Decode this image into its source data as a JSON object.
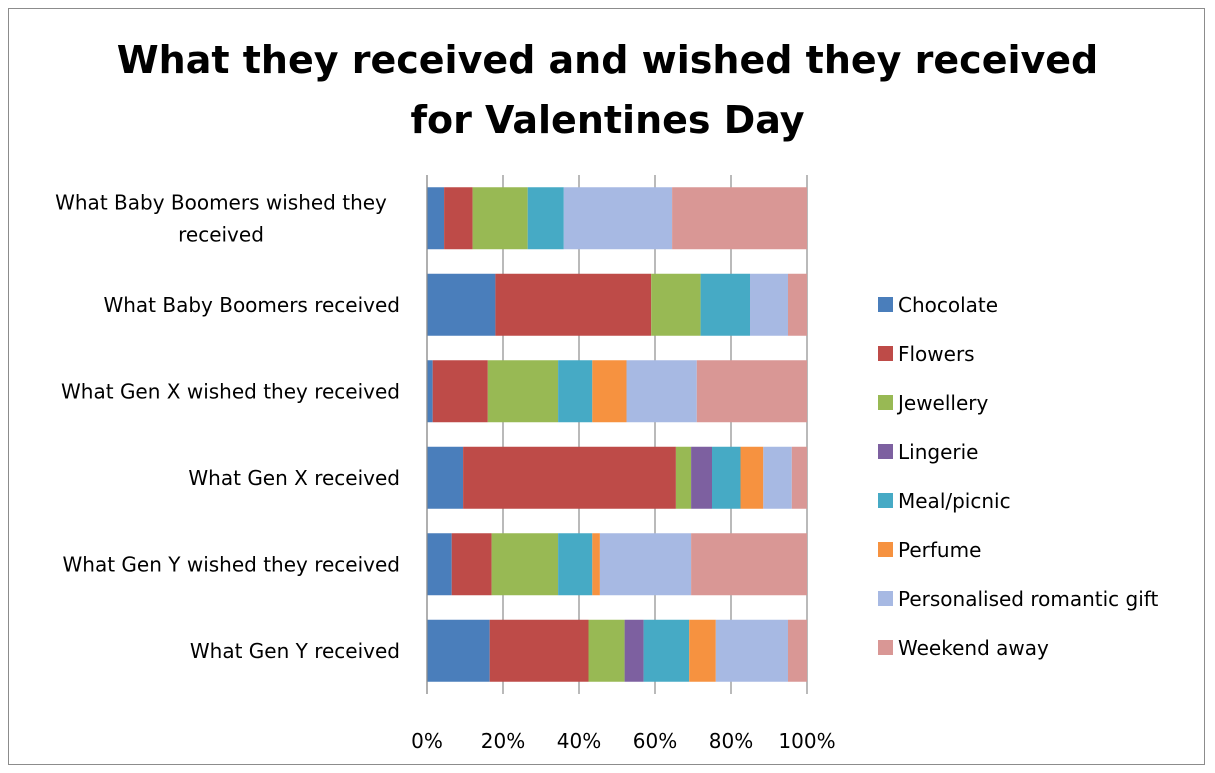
{
  "chart_data": {
    "type": "bar",
    "orientation": "horizontal",
    "stacked": "percent",
    "title": [
      "What they received and wished they received",
      "for Valentines Day"
    ],
    "categories": [
      "What Baby Boomers wished they received",
      "What Baby Boomers received",
      "What Gen X wished they received",
      "What Gen X received",
      "What Gen Y wished they received",
      "What Gen Y received"
    ],
    "category_label_lines": [
      [
        "What Baby Boomers wished they",
        "received"
      ],
      [
        "What Baby Boomers received"
      ],
      [
        "What Gen X wished they received"
      ],
      [
        "What Gen X received"
      ],
      [
        "What Gen Y wished they received"
      ],
      [
        "What Gen Y received"
      ]
    ],
    "series": [
      {
        "name": "Chocolate",
        "color": "#4a7ebb",
        "values": [
          4.5,
          18,
          1.5,
          9.5,
          6.5,
          16.5
        ]
      },
      {
        "name": "Flowers",
        "color": "#be4b48",
        "values": [
          7.5,
          41,
          14.5,
          56,
          10.5,
          26
        ]
      },
      {
        "name": "Jewellery",
        "color": "#98b954",
        "values": [
          14.5,
          13,
          18.5,
          4,
          17.5,
          9.5
        ]
      },
      {
        "name": "Lingerie",
        "color": "#7d60a0",
        "values": [
          0,
          0,
          0,
          5.5,
          0,
          5
        ]
      },
      {
        "name": "Meal/picnic",
        "color": "#46aac5",
        "values": [
          9.5,
          13,
          9,
          7.5,
          9,
          12
        ]
      },
      {
        "name": "Perfume",
        "color": "#f69240",
        "values": [
          0,
          0,
          9,
          6,
          2,
          7
        ]
      },
      {
        "name": "Personalised romantic gift",
        "color": "#a7b9e3",
        "values": [
          28.5,
          10,
          18.5,
          7.5,
          24,
          19
        ]
      },
      {
        "name": "Weekend away",
        "color": "#d99795",
        "values": [
          35.5,
          5,
          29,
          4,
          30.5,
          5
        ]
      }
    ],
    "x_ticks": [
      "0%",
      "20%",
      "40%",
      "60%",
      "80%",
      "100%"
    ],
    "xlim": [
      0,
      100
    ],
    "grid": true,
    "legend_position": "right"
  }
}
